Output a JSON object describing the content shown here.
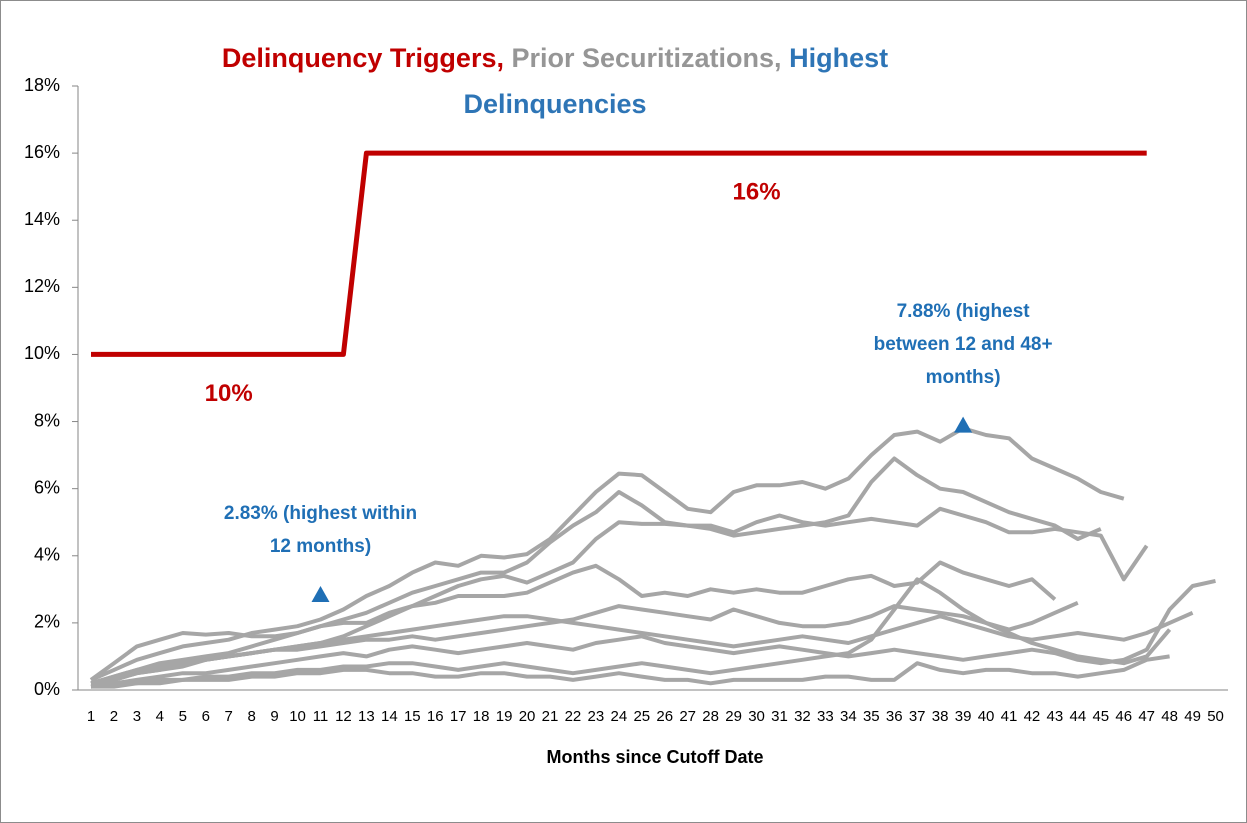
{
  "chart_data": {
    "type": "line",
    "title_parts": [
      {
        "text": "Delinquency Triggers,",
        "color": "#c00000"
      },
      {
        "text": "Prior Securitizations,",
        "color": "#969696"
      },
      {
        "text": "Highest Delinquencies",
        "color": "#2e75b6"
      }
    ],
    "x_label": "Months since Cutoff Date",
    "categories": [
      1,
      2,
      3,
      4,
      5,
      6,
      7,
      8,
      9,
      10,
      11,
      12,
      13,
      14,
      15,
      16,
      17,
      18,
      19,
      20,
      21,
      22,
      23,
      24,
      25,
      26,
      27,
      28,
      29,
      30,
      31,
      32,
      33,
      34,
      35,
      36,
      37,
      38,
      39,
      40,
      41,
      42,
      43,
      44,
      45,
      46,
      47,
      48,
      49,
      50
    ],
    "ylim": [
      0,
      18
    ],
    "yticks": [
      {
        "value": 0,
        "label": "0%"
      },
      {
        "value": 2,
        "label": "2%"
      },
      {
        "value": 4,
        "label": "4%"
      },
      {
        "value": 6,
        "label": "6%"
      },
      {
        "value": 8,
        "label": "8%"
      },
      {
        "value": 10,
        "label": "10%"
      },
      {
        "value": 12,
        "label": "12%"
      },
      {
        "value": 14,
        "label": "14%"
      },
      {
        "value": 16,
        "label": "16%"
      },
      {
        "value": 18,
        "label": "18%"
      }
    ],
    "gray_color": "#a6a6a6",
    "gray_series": [
      {
        "values": [
          0.3,
          0.6,
          0.9,
          1.1,
          1.3,
          1.4,
          1.5,
          1.7,
          1.8,
          1.9,
          2.1,
          2.4,
          2.8,
          3.1,
          3.5,
          3.8,
          3.7,
          4.0,
          3.95,
          4.05,
          4.5,
          5.2,
          5.9,
          6.45,
          6.4,
          5.9,
          5.4,
          5.3,
          5.9,
          6.1,
          6.1,
          6.2,
          6.0,
          6.3,
          7.0,
          7.6,
          7.7,
          7.4,
          7.8,
          7.6,
          7.5,
          6.9,
          6.6,
          6.3,
          5.9,
          5.7,
          null,
          null,
          null,
          null
        ]
      },
      {
        "values": [
          0.2,
          0.4,
          0.6,
          0.8,
          0.9,
          1.0,
          1.1,
          1.3,
          1.5,
          1.7,
          1.9,
          2.1,
          2.3,
          2.6,
          2.9,
          3.1,
          3.3,
          3.5,
          3.5,
          3.8,
          4.4,
          4.9,
          5.3,
          5.9,
          5.5,
          5.0,
          4.9,
          4.8,
          4.6,
          4.7,
          4.8,
          4.9,
          5.0,
          5.2,
          6.2,
          6.9,
          6.4,
          6.0,
          5.9,
          5.6,
          5.3,
          5.1,
          4.9,
          4.5,
          4.8,
          null,
          null,
          null,
          null,
          null
        ]
      },
      {
        "values": [
          0.2,
          0.3,
          0.5,
          0.6,
          0.8,
          0.9,
          1.0,
          1.1,
          1.2,
          1.3,
          1.4,
          1.6,
          1.9,
          2.2,
          2.5,
          2.8,
          3.1,
          3.3,
          3.4,
          3.2,
          3.5,
          3.8,
          4.5,
          5.0,
          4.95,
          4.95,
          4.9,
          4.9,
          4.7,
          5.0,
          5.2,
          5.0,
          4.9,
          5.0,
          5.1,
          5.0,
          4.9,
          5.4,
          5.2,
          5.0,
          4.7,
          4.7,
          4.8,
          4.7,
          4.6,
          3.3,
          4.3,
          null,
          null,
          null
        ]
      },
      {
        "values": [
          0.3,
          0.8,
          1.3,
          1.5,
          1.7,
          1.65,
          1.7,
          1.6,
          1.6,
          1.7,
          1.9,
          2.0,
          2.0,
          2.3,
          2.5,
          2.6,
          2.8,
          2.8,
          2.8,
          2.9,
          3.2,
          3.5,
          3.7,
          3.3,
          2.8,
          2.9,
          2.8,
          3.0,
          2.9,
          3.0,
          2.9,
          2.9,
          3.1,
          3.3,
          3.4,
          3.1,
          3.2,
          3.8,
          3.5,
          3.3,
          3.1,
          3.3,
          2.7,
          null,
          null,
          null,
          null,
          null,
          null,
          null
        ]
      },
      {
        "values": [
          0.2,
          0.4,
          0.6,
          0.7,
          0.8,
          0.9,
          1.0,
          1.1,
          1.2,
          1.2,
          1.3,
          1.4,
          1.5,
          1.5,
          1.6,
          1.5,
          1.6,
          1.7,
          1.8,
          1.9,
          2.0,
          2.1,
          2.3,
          2.5,
          2.4,
          2.3,
          2.2,
          2.1,
          2.4,
          2.2,
          2.0,
          1.9,
          1.9,
          2.0,
          2.2,
          2.5,
          2.4,
          2.3,
          2.2,
          2.0,
          1.8,
          2.0,
          2.3,
          2.6,
          null,
          null,
          null,
          null,
          null,
          null
        ]
      },
      {
        "values": [
          0.1,
          0.2,
          0.3,
          0.4,
          0.5,
          0.5,
          0.6,
          0.7,
          0.8,
          0.9,
          1.0,
          1.1,
          1.0,
          1.2,
          1.3,
          1.2,
          1.1,
          1.2,
          1.3,
          1.4,
          1.3,
          1.2,
          1.4,
          1.5,
          1.6,
          1.4,
          1.3,
          1.2,
          1.1,
          1.2,
          1.3,
          1.2,
          1.1,
          1.0,
          1.1,
          1.2,
          1.1,
          1.0,
          0.9,
          1.0,
          1.1,
          1.2,
          1.1,
          0.9,
          0.8,
          0.9,
          1.2,
          2.4,
          3.1,
          3.25
        ]
      },
      {
        "values": [
          0.1,
          0.2,
          0.2,
          0.3,
          0.3,
          0.4,
          0.4,
          0.5,
          0.5,
          0.6,
          0.6,
          0.7,
          0.7,
          0.8,
          0.8,
          0.7,
          0.6,
          0.7,
          0.8,
          0.7,
          0.6,
          0.5,
          0.6,
          0.7,
          0.8,
          0.7,
          0.6,
          0.5,
          0.6,
          0.7,
          0.8,
          0.9,
          1.0,
          1.1,
          1.5,
          2.4,
          3.3,
          2.9,
          2.4,
          2.0,
          1.7,
          1.4,
          1.2,
          1.0,
          0.9,
          0.8,
          1.0,
          1.8,
          null,
          null
        ]
      },
      {
        "values": [
          0.2,
          0.3,
          0.5,
          0.6,
          0.7,
          0.9,
          1.0,
          1.1,
          1.2,
          1.3,
          1.4,
          1.5,
          1.6,
          1.7,
          1.8,
          1.9,
          2.0,
          2.1,
          2.2,
          2.2,
          2.1,
          2.0,
          1.9,
          1.8,
          1.7,
          1.6,
          1.5,
          1.4,
          1.3,
          1.4,
          1.5,
          1.6,
          1.5,
          1.4,
          1.6,
          1.8,
          2.0,
          2.2,
          2.0,
          1.8,
          1.6,
          1.5,
          1.6,
          1.7,
          1.6,
          1.5,
          1.7,
          2.0,
          2.3,
          null
        ]
      },
      {
        "values": [
          0.1,
          0.1,
          0.2,
          0.2,
          0.3,
          0.3,
          0.3,
          0.4,
          0.4,
          0.5,
          0.5,
          0.6,
          0.6,
          0.5,
          0.5,
          0.4,
          0.4,
          0.5,
          0.5,
          0.4,
          0.4,
          0.3,
          0.4,
          0.5,
          0.4,
          0.3,
          0.3,
          0.2,
          0.3,
          0.3,
          0.3,
          0.3,
          0.4,
          0.4,
          0.3,
          0.3,
          0.8,
          0.6,
          0.5,
          0.6,
          0.6,
          0.5,
          0.5,
          0.4,
          0.5,
          0.6,
          0.9,
          1.0,
          null,
          null
        ]
      }
    ],
    "trigger": {
      "color": "#c00000",
      "values": [
        10,
        10,
        10,
        10,
        10,
        10,
        10,
        10,
        10,
        10,
        10,
        10,
        16,
        16,
        16,
        16,
        16,
        16,
        16,
        16,
        16,
        16,
        16,
        16,
        16,
        16,
        16,
        16,
        16,
        16,
        16,
        16,
        16,
        16,
        16,
        16,
        16,
        16,
        16,
        16,
        16,
        16,
        16,
        16,
        16,
        16,
        16,
        null,
        null,
        null
      ],
      "value_labels": [
        null,
        null,
        null,
        null,
        null,
        null,
        "10%",
        null,
        null,
        null,
        null,
        null,
        null,
        null,
        null,
        null,
        null,
        null,
        null,
        null,
        null,
        null,
        null,
        null,
        null,
        null,
        null,
        null,
        null,
        "16%",
        null,
        null,
        null,
        null,
        null,
        null,
        null,
        null,
        null,
        null,
        null,
        null,
        null,
        null,
        null,
        null,
        null,
        null,
        null,
        null
      ]
    },
    "highest": {
      "color": "#1f6fb5",
      "values": [
        null,
        null,
        null,
        null,
        null,
        null,
        null,
        null,
        null,
        null,
        2.83,
        null,
        null,
        null,
        null,
        null,
        null,
        null,
        null,
        null,
        null,
        null,
        null,
        null,
        null,
        null,
        null,
        null,
        null,
        null,
        null,
        null,
        null,
        null,
        null,
        null,
        null,
        null,
        7.88,
        null,
        null,
        null,
        null,
        null,
        null,
        null,
        null,
        null,
        null,
        null
      ],
      "value_labels": [
        null,
        null,
        null,
        null,
        null,
        null,
        null,
        null,
        null,
        null,
        "2.83% (highest within 12 months)",
        null,
        null,
        null,
        null,
        null,
        null,
        null,
        null,
        null,
        null,
        null,
        null,
        null,
        null,
        null,
        null,
        null,
        null,
        null,
        null,
        null,
        null,
        null,
        null,
        null,
        null,
        null,
        "7.88% (highest between 12 and 48+ months)",
        null,
        null,
        null,
        null,
        null,
        null,
        null,
        null,
        null,
        null,
        null
      ]
    }
  }
}
